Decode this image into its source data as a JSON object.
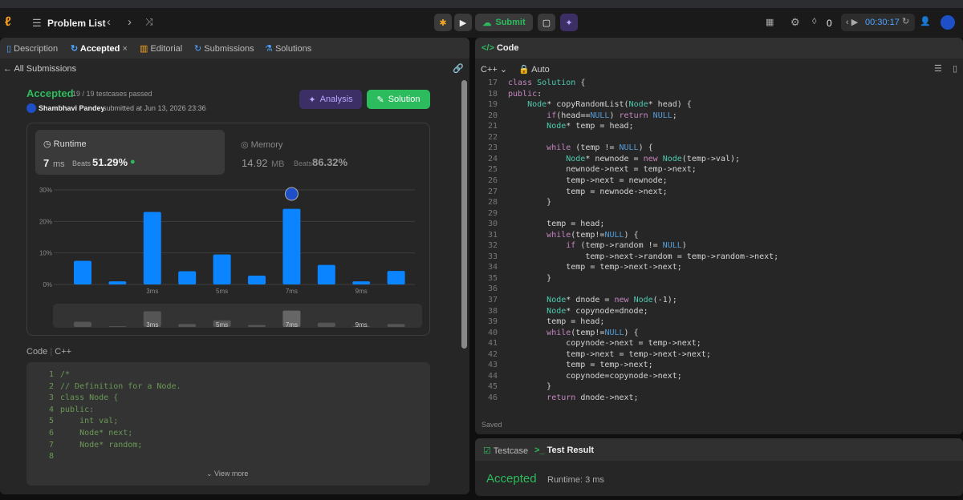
{
  "topbar": {
    "nav_title": "Problem List",
    "submit": "Submit",
    "streak": "0",
    "timer": "00:30:17"
  },
  "left_panel": {
    "tabs": [
      "Description",
      "Accepted",
      "Editorial",
      "Submissions",
      "Solutions"
    ],
    "back": "All Submissions",
    "status": "Accepted",
    "testcases": "19 / 19 testcases passed",
    "user": "Shambhavi Pandey",
    "submitted": "submitted at Jun 13, 2026 23:36",
    "analysis_button": "Analysis",
    "solution_button": "Solution",
    "runtime": {
      "label": "Runtime",
      "value": "7",
      "unit": "ms",
      "beats_label": "Beats",
      "beats": "51.29%"
    },
    "memory": {
      "label": "Memory",
      "value": "14.92",
      "unit": "MB",
      "beats_label": "Beats",
      "beats": "86.32%"
    },
    "code_label": "Code",
    "language": "C++",
    "code_preview": [
      {
        "n": "1",
        "code": "/*"
      },
      {
        "n": "2",
        "code": "// Definition for a Node."
      },
      {
        "n": "3",
        "code": "class Node {"
      },
      {
        "n": "4",
        "code": "public:"
      },
      {
        "n": "5",
        "code": "    int val;"
      },
      {
        "n": "6",
        "code": "    Node* next;"
      },
      {
        "n": "7",
        "code": "    Node* random;"
      },
      {
        "n": "8",
        "code": null
      }
    ],
    "view_more": "View more"
  },
  "chart_data": {
    "type": "bar",
    "categories": [
      null,
      null,
      "3ms",
      null,
      "5ms",
      null,
      "7ms",
      null,
      "9ms",
      null
    ],
    "values": [
      7.5,
      1,
      23,
      4.2,
      9.5,
      2.8,
      24,
      6.2,
      1,
      4.3
    ],
    "color": "#0a84ff",
    "ylim": [
      0,
      30
    ],
    "yticks": [
      {
        "value": 0,
        "label": "0%"
      },
      {
        "value": 10,
        "label": "10%"
      },
      {
        "value": 20,
        "label": "20%"
      },
      {
        "value": 30,
        "label": "30%"
      }
    ],
    "grid": true
  },
  "editor": {
    "title": "Code",
    "language": "C++",
    "mode": "Auto",
    "saved": "Saved",
    "lines": [
      {
        "n": "17",
        "code": "class Solution {"
      },
      {
        "n": "18",
        "code": "public:"
      },
      {
        "n": "19",
        "code": "    Node* copyRandomList(Node* head) {"
      },
      {
        "n": "20",
        "code": "        if(head==NULL) return NULL;"
      },
      {
        "n": "21",
        "code": "        Node* temp = head;"
      },
      {
        "n": "22",
        "code": null
      },
      {
        "n": "23",
        "code": "        while (temp != NULL) {"
      },
      {
        "n": "24",
        "code": "            Node* newnode = new Node(temp->val);"
      },
      {
        "n": "25",
        "code": "            newnode->next = temp->next;"
      },
      {
        "n": "26",
        "code": "            temp->next = newnode;"
      },
      {
        "n": "27",
        "code": "            temp = newnode->next;"
      },
      {
        "n": "28",
        "code": "        }"
      },
      {
        "n": "29",
        "code": null
      },
      {
        "n": "30",
        "code": "        temp = head;"
      },
      {
        "n": "31",
        "code": "        while(temp!=NULL) {"
      },
      {
        "n": "32",
        "code": "            if (temp->random != NULL)"
      },
      {
        "n": "33",
        "code": "                temp->next->random = temp->random->next;"
      },
      {
        "n": "34",
        "code": "            temp = temp->next->next;"
      },
      {
        "n": "35",
        "code": "        }"
      },
      {
        "n": "36",
        "code": null
      },
      {
        "n": "37",
        "code": "        Node* dnode = new Node(-1);"
      },
      {
        "n": "38",
        "code": "        Node* copynode=dnode;"
      },
      {
        "n": "39",
        "code": "        temp = head;"
      },
      {
        "n": "40",
        "code": "        while(temp!=NULL) {"
      },
      {
        "n": "41",
        "code": "            copynode->next = temp->next;"
      },
      {
        "n": "42",
        "code": "            temp->next = temp->next->next;"
      },
      {
        "n": "43",
        "code": "            temp = temp->next;"
      },
      {
        "n": "44",
        "code": "            copynode=copynode->next;"
      },
      {
        "n": "45",
        "code": "        }"
      },
      {
        "n": "46",
        "code": "        return dnode->next;"
      }
    ]
  },
  "result_panel": {
    "tabs": [
      "Testcase",
      "Test Result"
    ],
    "status": "Accepted",
    "runtime": "Runtime: 3 ms"
  }
}
